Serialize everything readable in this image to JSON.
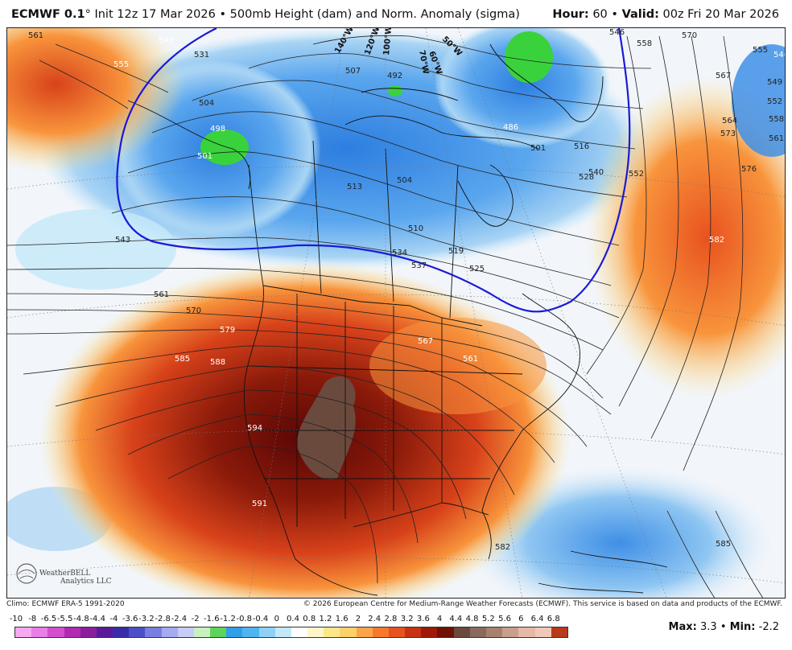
{
  "header": {
    "model": "ECMWF 0.1",
    "degree": "°",
    "init": "Init 12z 17 Mar 2026",
    "separator": "•",
    "product": "500mb Height (dam) and Norm. Anomaly (sigma)",
    "hour_label": "Hour:",
    "hour_value": "60",
    "valid_label": "Valid:",
    "valid_value": "00z Fri 20 Mar 2026"
  },
  "footer": {
    "climo": "Climo: ECMWF ERA-5 1991-2020",
    "copyright": "© 2026 European Centre for Medium-Range Weather Forecasts (ECMWF). This service is based on data and products of the ECMWF."
  },
  "watermark": {
    "text": "WeatherBELL",
    "subtext": "Analytics LLC"
  },
  "legend": {
    "ticks": [
      "-10",
      "-8",
      "-6.5",
      "-5.5",
      "-4.8",
      "-4.4",
      "-4",
      "-3.6",
      "-3.2",
      "-2.8",
      "-2.4",
      "-2",
      "-1.6",
      "-1.2",
      "-0.8",
      "-0.4",
      "0",
      "0.4",
      "0.8",
      "1.2",
      "1.6",
      "2",
      "2.4",
      "2.8",
      "3.2",
      "3.6",
      "4",
      "4.4",
      "4.8",
      "5.2",
      "5.6",
      "6",
      "6.4",
      "6.8"
    ],
    "colors": [
      "#f7a8f0",
      "#e87ee6",
      "#d24fd0",
      "#b02ab2",
      "#8a1e9e",
      "#5b1a9a",
      "#3a2ca8",
      "#4d4fc8",
      "#7a7ee0",
      "#a6aaf0",
      "#c8ccf8",
      "#c8f0c0",
      "#5fd45a",
      "#2f9fe8",
      "#4fb4f0",
      "#8fd0f6",
      "#c4e8fa",
      "#ffffff",
      "#fff5c8",
      "#fde68a",
      "#fdd06a",
      "#fca44c",
      "#f8782e",
      "#e8521f",
      "#c83214",
      "#a0180a",
      "#701006",
      "#6b4a3e",
      "#8a6a5e",
      "#a88070",
      "#c89e8c",
      "#e6b8a6",
      "#f0c8b8",
      "#b83a1a"
    ]
  },
  "stats": {
    "max_label": "Max:",
    "max_value": "3.3",
    "min_label": "Min:",
    "min_value": "-2.2",
    "separator": "•"
  },
  "map": {
    "contour_labels": [
      "561",
      "549",
      "555",
      "531",
      "504",
      "501",
      "498",
      "507",
      "492",
      "486",
      "501",
      "516",
      "528",
      "540",
      "546",
      "552",
      "558",
      "570",
      "567",
      "564",
      "573",
      "576",
      "582",
      "555",
      "546",
      "549",
      "552",
      "558",
      "561",
      "543",
      "561",
      "570",
      "579",
      "585",
      "588",
      "594",
      "591",
      "567",
      "561",
      "513",
      "504",
      "510",
      "519",
      "534",
      "537",
      "525",
      "582",
      "585"
    ],
    "longitude_labels": [
      "140°W",
      "120°W",
      "100°W",
      "70°W",
      "60°W",
      "50°W"
    ],
    "colors": {
      "anomaly_pos_strong": "#8a1a0a",
      "anomaly_pos": "#e24a1e",
      "anomaly_pos_weak": "#fcd46a",
      "anomaly_neg": "#3f8fe6",
      "anomaly_neg_weak": "#a9d4f4",
      "anomaly_neg_strong": "#3ad23c",
      "max_anomaly": "#6b4a3e",
      "contour_540": "#1a1ad6"
    }
  }
}
